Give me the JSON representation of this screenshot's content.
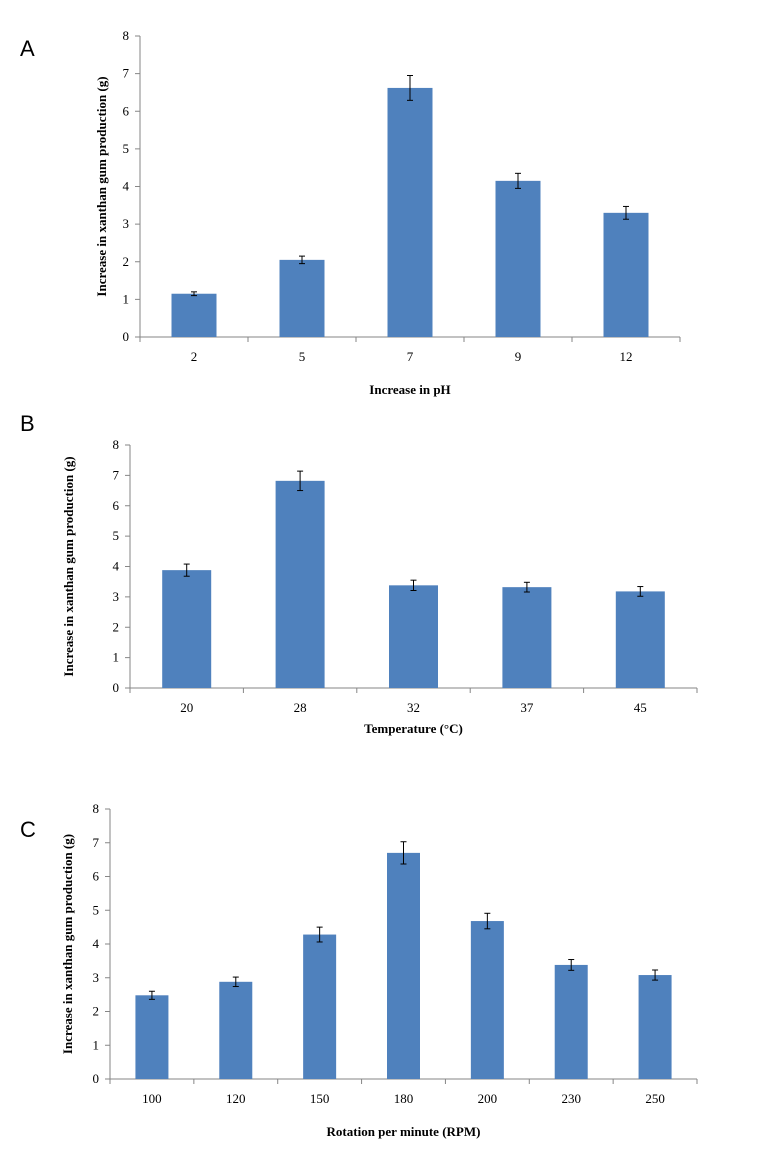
{
  "panels": [
    {
      "letter": "A"
    },
    {
      "letter": "B"
    },
    {
      "letter": "C"
    }
  ],
  "colors": {
    "bar": "#4f81bd",
    "axis": "#868686",
    "error_bar": "#000000"
  },
  "chart_data": [
    {
      "type": "bar",
      "categories": [
        "2",
        "5",
        "7",
        "9",
        "12"
      ],
      "values": [
        1.15,
        2.05,
        6.62,
        4.15,
        3.3
      ],
      "errors": [
        0.05,
        0.1,
        0.33,
        0.2,
        0.17
      ],
      "title": "",
      "xlabel": "Increase in pH",
      "ylabel": "Increase in xanthan gum production (g)",
      "ylim": [
        0,
        8
      ],
      "yticks": [
        "0",
        "1",
        "2",
        "3",
        "4",
        "5",
        "6",
        "7",
        "8"
      ],
      "grid": false,
      "legend": "none"
    },
    {
      "type": "bar",
      "categories": [
        "20",
        "28",
        "32",
        "37",
        "45"
      ],
      "values": [
        3.88,
        6.82,
        3.38,
        3.32,
        3.18
      ],
      "errors": [
        0.2,
        0.32,
        0.17,
        0.16,
        0.16
      ],
      "title": "",
      "xlabel": "Temperature (°C)",
      "ylabel": "Increase in xanthan gum production (g)",
      "ylim": [
        0,
        8
      ],
      "yticks": [
        "0",
        "1",
        "2",
        "3",
        "4",
        "5",
        "6",
        "7",
        "8"
      ],
      "grid": false,
      "legend": "none"
    },
    {
      "type": "bar",
      "categories": [
        "100",
        "120",
        "150",
        "180",
        "200",
        "230",
        "250"
      ],
      "values": [
        2.48,
        2.88,
        4.28,
        6.7,
        4.68,
        3.38,
        3.08
      ],
      "errors": [
        0.12,
        0.14,
        0.22,
        0.33,
        0.23,
        0.16,
        0.15
      ],
      "title": "",
      "xlabel": "Rotation per minute (RPM)",
      "ylabel": "Increase in xanthan gum production (g)",
      "ylim": [
        0,
        8
      ],
      "yticks": [
        "0",
        "1",
        "2",
        "3",
        "4",
        "5",
        "6",
        "7",
        "8"
      ],
      "grid": false,
      "legend": "none"
    }
  ]
}
